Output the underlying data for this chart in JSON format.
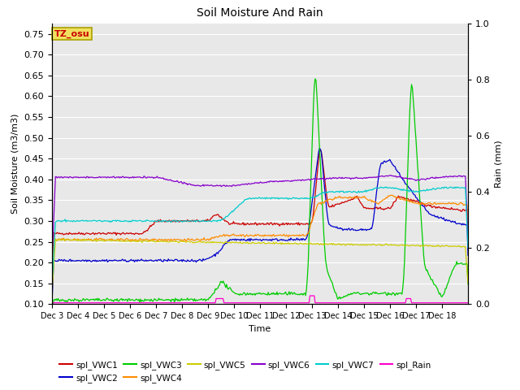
{
  "title": "Soil Moisture And Rain",
  "xlabel": "Time",
  "ylabel_left": "Soil Moisture (m3/m3)",
  "ylabel_right": "Rain (mm)",
  "ylim_left": [
    0.1,
    0.775
  ],
  "ylim_right": [
    0.0,
    1.0
  ],
  "annotation_text": "TZ_osu",
  "annotation_color": "#cc0000",
  "annotation_bg": "#f0e060",
  "annotation_border": "#aaa000",
  "background_color": "#e8e8e8",
  "series_colors": {
    "VWC1": "#cc0000",
    "VWC2": "#0000cc",
    "VWC3": "#00cc00",
    "VWC4": "#ff8c00",
    "VWC5": "#cccc00",
    "VWC6": "#8800cc",
    "VWC7": "#00cccc",
    "Rain": "#ff00cc"
  },
  "xtick_labels": [
    "Dec 3",
    "Dec 4",
    "Dec 5",
    "Dec 6",
    "Dec 7",
    "Dec 8",
    "Dec 9",
    "Dec 10",
    "Dec 11",
    "Dec 12",
    "Dec 13",
    "Dec 14",
    "Dec 15",
    "Dec 16",
    "Dec 17",
    "Dec 18"
  ],
  "yticks_left": [
    0.1,
    0.15,
    0.2,
    0.25,
    0.3,
    0.35,
    0.4,
    0.45,
    0.5,
    0.55,
    0.6,
    0.65,
    0.7,
    0.75
  ],
  "yticks_right": [
    0.0,
    0.2,
    0.4,
    0.6,
    0.8,
    1.0
  ],
  "n_points": 480
}
